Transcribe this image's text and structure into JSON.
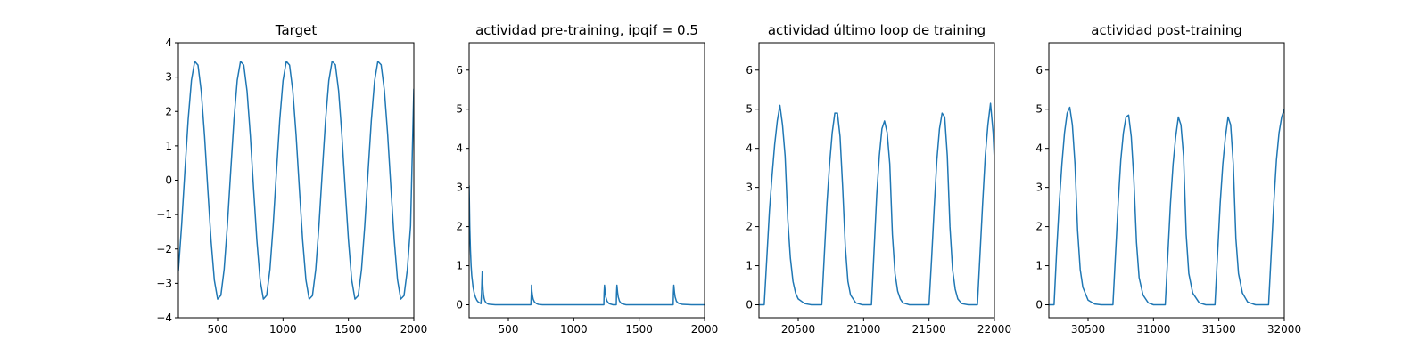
{
  "chart_data": [
    {
      "type": "line",
      "title": "Target",
      "xlabel": "",
      "ylabel": "",
      "xlim": [
        200,
        2000
      ],
      "ylim": [
        -4,
        4
      ],
      "xticks": [
        500,
        1000,
        1500,
        2000
      ],
      "yticks": [
        -4,
        -3,
        -2,
        -1,
        0,
        1,
        2,
        3,
        4
      ],
      "ytick_labels": [
        "−4",
        "−3",
        "−2",
        "−1",
        "0",
        "1",
        "2",
        "3",
        "4"
      ],
      "grid": false,
      "color": "#1f77b4",
      "series": [
        {
          "x": [
            200,
            225,
            250,
            275,
            300,
            325,
            350,
            375,
            400,
            425,
            450,
            475,
            500,
            525,
            550,
            575,
            600,
            625,
            650,
            675,
            700,
            725,
            750,
            775,
            800,
            825,
            850,
            875,
            900,
            925,
            950,
            975,
            1000,
            1025,
            1050,
            1075,
            1100,
            1125,
            1150,
            1175,
            1200,
            1225,
            1250,
            1275,
            1300,
            1325,
            1350,
            1375,
            1400,
            1425,
            1450,
            1475,
            1500,
            1525,
            1550,
            1575,
            1600,
            1625,
            1650,
            1675,
            1700,
            1725,
            1750,
            1775,
            1800,
            1825,
            1850,
            1875,
            1900,
            1925,
            1950,
            1975,
            2000
          ],
          "y": [
            -2.64,
            -1.29,
            0.28,
            1.77,
            2.91,
            3.46,
            3.35,
            2.58,
            1.29,
            -0.27,
            -1.76,
            -2.91,
            -3.46,
            -3.35,
            -2.59,
            -1.29,
            0.26,
            1.76,
            2.91,
            3.46,
            3.35,
            2.59,
            1.3,
            -0.26,
            -1.75,
            -2.91,
            -3.46,
            -3.35,
            -2.59,
            -1.3,
            0.25,
            1.75,
            2.9,
            3.46,
            3.35,
            2.59,
            1.31,
            -0.25,
            -1.74,
            -2.9,
            -3.46,
            -3.36,
            -2.6,
            -1.31,
            0.24,
            1.74,
            2.9,
            3.46,
            3.36,
            2.6,
            1.32,
            -0.24,
            -1.73,
            -2.9,
            -3.46,
            -3.36,
            -2.6,
            -1.32,
            0.23,
            1.73,
            2.89,
            3.46,
            3.36,
            2.61,
            1.33,
            -0.23,
            -1.73,
            -2.89,
            -3.46,
            -3.36,
            -2.61,
            -1.33,
            2.66
          ]
        }
      ]
    },
    {
      "type": "line",
      "title": "actividad pre-training, ipqif = 0.5",
      "xlabel": "",
      "ylabel": "",
      "xlim": [
        200,
        2000
      ],
      "ylim": [
        -0.33,
        6.7
      ],
      "xticks": [
        500,
        1000,
        1500,
        2000
      ],
      "yticks": [
        0,
        1,
        2,
        3,
        4,
        5,
        6
      ],
      "ytick_labels": [
        "0",
        "1",
        "2",
        "3",
        "4",
        "5",
        "6"
      ],
      "grid": false,
      "color": "#1f77b4",
      "series": [
        {
          "x": [
            200,
            205,
            210,
            215,
            220,
            230,
            240,
            250,
            260,
            270,
            285,
            290,
            295,
            297,
            300,
            303,
            306,
            310,
            315,
            320,
            330,
            345,
            360,
            400,
            450,
            500,
            550,
            600,
            650,
            672,
            675,
            677,
            680,
            685,
            690,
            700,
            715,
            730,
            760,
            800,
            900,
            1000,
            1100,
            1200,
            1230,
            1232,
            1235,
            1240,
            1245,
            1255,
            1270,
            1300,
            1325,
            1327,
            1330,
            1335,
            1340,
            1350,
            1365,
            1400,
            1500,
            1600,
            1700,
            1760,
            1762,
            1765,
            1770,
            1775,
            1785,
            1800,
            1830,
            1900,
            2000
          ],
          "y": [
            3.05,
            2.0,
            1.4,
            1.0,
            0.75,
            0.45,
            0.28,
            0.18,
            0.11,
            0.07,
            0.04,
            0.03,
            0.3,
            0.55,
            0.85,
            0.6,
            0.4,
            0.26,
            0.16,
            0.1,
            0.05,
            0.02,
            0.01,
            0.0,
            0.0,
            0.0,
            0.0,
            0.0,
            0.0,
            0.0,
            0.25,
            0.5,
            0.35,
            0.22,
            0.14,
            0.07,
            0.03,
            0.01,
            0.0,
            0.0,
            0.0,
            0.0,
            0.0,
            0.0,
            0.0,
            0.3,
            0.5,
            0.32,
            0.2,
            0.09,
            0.03,
            0.0,
            0.0,
            0.3,
            0.5,
            0.32,
            0.2,
            0.09,
            0.03,
            0.0,
            0.0,
            0.0,
            0.0,
            0.0,
            0.3,
            0.5,
            0.32,
            0.2,
            0.09,
            0.04,
            0.01,
            0.0,
            0.0
          ]
        }
      ]
    },
    {
      "type": "line",
      "title": "actividad último loop de training",
      "xlabel": "",
      "ylabel": "",
      "xlim": [
        20200,
        22000
      ],
      "ylim": [
        -0.33,
        6.7
      ],
      "xticks": [
        20500,
        21000,
        21500,
        22000
      ],
      "yticks": [
        0,
        1,
        2,
        3,
        4,
        5,
        6
      ],
      "ytick_labels": [
        "0",
        "1",
        "2",
        "3",
        "4",
        "5",
        "6"
      ],
      "grid": false,
      "color": "#1f77b4",
      "series": [
        {
          "x": [
            20200,
            20240,
            20260,
            20280,
            20300,
            20320,
            20340,
            20360,
            20380,
            20400,
            20420,
            20440,
            20460,
            20480,
            20500,
            20550,
            20600,
            20680,
            20700,
            20720,
            20740,
            20760,
            20780,
            20800,
            20820,
            20840,
            20860,
            20880,
            20900,
            20940,
            20990,
            21060,
            21080,
            21100,
            21120,
            21140,
            21160,
            21180,
            21200,
            21220,
            21240,
            21260,
            21280,
            21300,
            21350,
            21400,
            21500,
            21520,
            21540,
            21560,
            21580,
            21600,
            21620,
            21640,
            21660,
            21680,
            21700,
            21720,
            21750,
            21800,
            21870,
            21890,
            21910,
            21930,
            21950,
            21970,
            21990,
            22000
          ],
          "y": [
            0.0,
            0.0,
            1.2,
            2.4,
            3.3,
            4.1,
            4.7,
            5.1,
            4.6,
            3.8,
            2.2,
            1.2,
            0.6,
            0.3,
            0.15,
            0.03,
            0.0,
            0.0,
            1.3,
            2.6,
            3.6,
            4.4,
            4.9,
            4.9,
            4.3,
            3.0,
            1.5,
            0.6,
            0.25,
            0.05,
            0.0,
            0.0,
            1.4,
            2.8,
            3.8,
            4.5,
            4.7,
            4.4,
            3.6,
            1.8,
            0.8,
            0.35,
            0.15,
            0.05,
            0.0,
            0.0,
            0.0,
            1.2,
            2.5,
            3.7,
            4.5,
            4.9,
            4.8,
            3.8,
            2.0,
            0.9,
            0.4,
            0.15,
            0.03,
            0.0,
            0.0,
            1.3,
            2.6,
            3.8,
            4.6,
            5.15,
            4.4,
            3.7
          ]
        }
      ]
    },
    {
      "type": "line",
      "title": "actividad post-training",
      "xlabel": "",
      "ylabel": "",
      "xlim": [
        30200,
        32000
      ],
      "ylim": [
        -0.33,
        6.7
      ],
      "xticks": [
        30500,
        31000,
        31500,
        32000
      ],
      "yticks": [
        0,
        1,
        2,
        3,
        4,
        5,
        6
      ],
      "ytick_labels": [
        "0",
        "1",
        "2",
        "3",
        "4",
        "5",
        "6"
      ],
      "grid": false,
      "color": "#1f77b4",
      "series": [
        {
          "x": [
            30200,
            30240,
            30260,
            30280,
            30300,
            30320,
            30340,
            30360,
            30380,
            30400,
            30420,
            30440,
            30460,
            30500,
            30550,
            30600,
            30690,
            30710,
            30730,
            30750,
            30770,
            30790,
            30810,
            30830,
            30850,
            30870,
            30890,
            30920,
            30960,
            31000,
            31090,
            31110,
            31130,
            31150,
            31170,
            31190,
            31210,
            31230,
            31250,
            31270,
            31300,
            31350,
            31400,
            31470,
            31490,
            31510,
            31530,
            31550,
            31570,
            31590,
            31610,
            31630,
            31650,
            31680,
            31720,
            31780,
            31880,
            31900,
            31920,
            31940,
            31960,
            31980,
            32000
          ],
          "y": [
            0.0,
            0.0,
            1.4,
            2.6,
            3.6,
            4.4,
            4.9,
            5.05,
            4.6,
            3.6,
            1.9,
            0.9,
            0.45,
            0.12,
            0.02,
            0.0,
            0.0,
            1.3,
            2.6,
            3.7,
            4.4,
            4.8,
            4.85,
            4.3,
            3.2,
            1.6,
            0.7,
            0.25,
            0.05,
            0.0,
            0.0,
            1.3,
            2.6,
            3.6,
            4.3,
            4.8,
            4.6,
            3.8,
            1.8,
            0.8,
            0.3,
            0.05,
            0.0,
            0.0,
            1.3,
            2.6,
            3.6,
            4.3,
            4.8,
            4.6,
            3.6,
            1.7,
            0.8,
            0.3,
            0.07,
            0.0,
            0.0,
            1.3,
            2.6,
            3.7,
            4.4,
            4.8,
            5.0
          ]
        }
      ]
    }
  ]
}
